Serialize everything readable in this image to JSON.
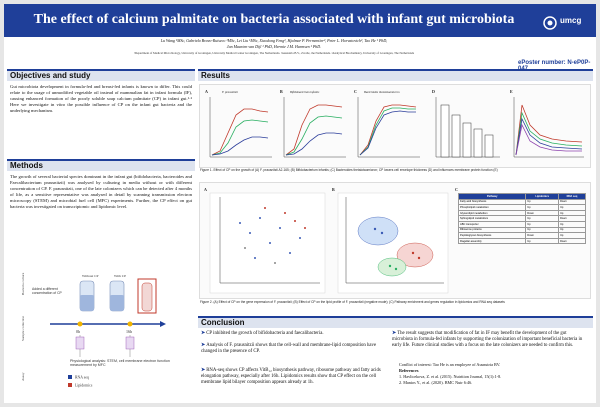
{
  "header": {
    "title": "The effect of calcium palmitate on bacteria associated with infant gut microbiota",
    "logo": "umcg",
    "authors_line1": "Lu Wang ¹MSc, Gabriela Bravo-Ruiseco ¹MSc, Lei Liu ¹MSc, Xiaodong Feng², Hjalmar P. Permentier³, Peter L. Horvatovich³, Tao He ¹ PhD,",
    "authors_line2": "Jan Maarten van Dijl ¹ PhD, Hermie J.M. Harmsen ¹ PhD.",
    "affiliations": "¹Department of Medical Microbiology, University of Groningen, University Medical Center Groningen, The Netherlands. ²Ausnutria B.V., Zwolle, the Netherlands. ³Analytical Biochemistry, University of Groningen, The Netherlands",
    "eposter": "ePoster number: N-eP0P-047"
  },
  "objectives": {
    "heading": "Objectives and study",
    "text": "Gut microbiota development in formula-fed and breast-fed infants is known to differ. This could relate to the usage of unmodified vegetable oil instead of mammalian fat in infant formula (IF), causing enhanced formation of the poorly soluble soap calcium palmitate (CP) in infant gut.¹·² Here we investigate in vitro the possible influence of CP on the infant gut bacteria and the underlying mechanism."
  },
  "methods": {
    "heading": "Methods",
    "text": "The growth of several bacterial species dominant in the infant gut (bifidobacteria, bacteroides and Faecalibacterium prausnitzii) was analysed by culturing in media without or with different concentration of CP. F. prausnitzii, one of the late colonizers which can be detected after 4 months of life, as a sensitive representative was analysed in detail by scanning transmission electron microscopy (STEM) and microbial fuel cell (MFC) experiments. Further, the CP effect on gut bacteria was investigated on transcriptomic and lipidomic level.",
    "diagram": {
      "col1": "Without CP",
      "col2": "With CP",
      "added": "Added a different concentration of CP",
      "bacteria": "Bacteria culture",
      "sample": "Sample collection",
      "assay": "Assay",
      "t0": "0h",
      "t1": "16h",
      "pheno": "Physiological analysis: STEM, cell membrane electron function measurement by MFC",
      "rna": "RNA seq",
      "lipid": "Lipidomics"
    }
  },
  "results": {
    "heading": "Results",
    "fig1_labels": [
      "A",
      "B",
      "C",
      "D",
      "E"
    ],
    "fig1_titles": [
      "F. prausnitzii",
      "Bifidobacterium infantis",
      "Bacteroides thetaiotaomicron"
    ],
    "caption1": "Figure 1. Effect of CP on the growth of (A) F. prausnitzii A2-165; (B) Bifidobacterium infantis; (C) Bacteroides thetaiotaomicron; CP lowers cell envelope thickness (D) and influences membrane protein function (E)",
    "fig2_labels": [
      "A",
      "B",
      "C"
    ],
    "caption2": "Figure 2. (A) Effect of CP on the gene expression of F. prausnitzii; (B) Effect of CP on the lipid profile of F. prausnitzii (negative mode); (C) Pathway enrichment and genes regulation in lipidomics and RNA seq datasets",
    "table_head": [
      "Pathway",
      "Lipidomics",
      "RNA seq"
    ],
    "table_rows": [
      [
        "Fatty acid biosynthesis",
        "Up",
        "Down"
      ],
      [
        "Phospholipid metabolism",
        "Up",
        "Up"
      ],
      [
        "Glycerolipid metabolism",
        "Down",
        "Up"
      ],
      [
        "Sphingolipid metabolism",
        "Up",
        "Down"
      ],
      [
        "ABC transporter",
        "Up",
        "Up"
      ],
      [
        "Ribosome proteins",
        "Up",
        "Up"
      ],
      [
        "Peptidoglycan biosynthesis",
        "Down",
        "Up"
      ],
      [
        "Flagellar assembly",
        "Up",
        "Down"
      ]
    ]
  },
  "conclusion": {
    "heading": "Conclusion",
    "items": [
      "CP inhibited the growth of bifidobacteria and faecalibacteria.",
      "Analysis of F. prausnitzii shows that the cell-wall and membrane-lipid composition have changed in the presence of CP.",
      "RNA-seq shows CP affects VitB₁₂ biosynthesis pathway, ribosome pathway and fatty acids elongation pathway, especially after 16h. Lipidomics results show that CP effect on the cell membrane lipid bilayer composition appears already at 1h."
    ],
    "right_text": "The result suggests that modification of fat in IF may benefit the development of the gut microbiota in formula-fed infants by supporting the colonization of important beneficial bacteria in early life. Future clinical studies with a focus on the late colonizers are needed to confirm this.",
    "coi": "Conflict of interest: Tao He is an employee of Ausnutria BV.",
    "refs_head": "References",
    "refs": [
      "1. Havlicekova, Z. et al. (2015). Nutrition Journal, 15(1):1-8.",
      "2. Manios Y., et al. (2020). BMC Nutr 6:46."
    ]
  },
  "colors": {
    "primary": "#1f3f99",
    "section_bg": "#dde3ef"
  }
}
